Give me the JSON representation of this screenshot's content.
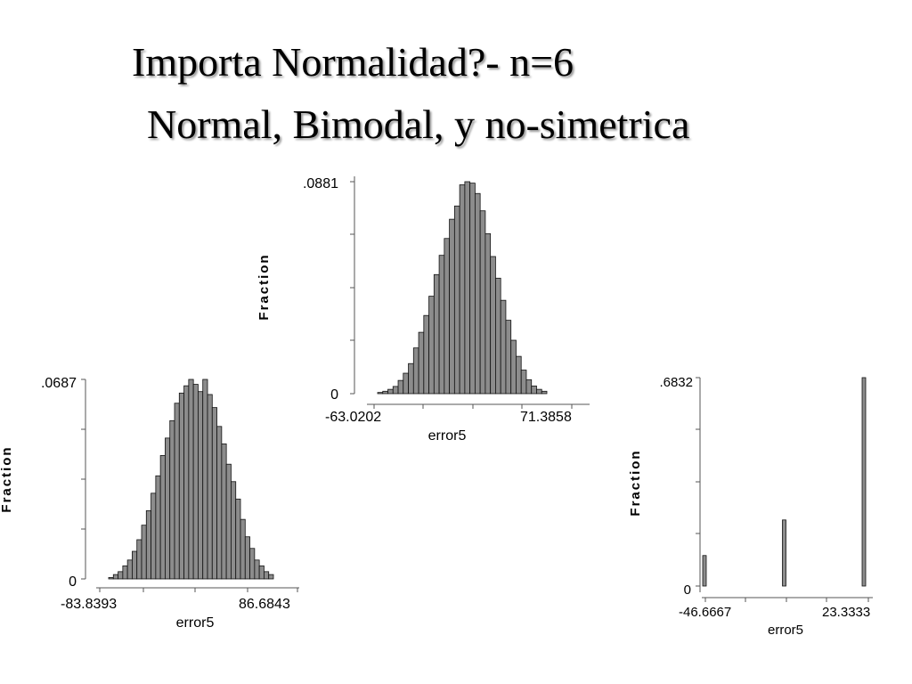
{
  "slide": {
    "title_line1": "Importa Normalidad?- n=6",
    "title_line2": "Normal, Bimodal, y no-simetrica"
  },
  "colors": {
    "bar_fill": "#8c8c8c",
    "bar_stroke": "#111111",
    "axis": "#555555"
  },
  "chart_data": [
    {
      "type": "bar",
      "xlabel": "error5",
      "ylabel": "Fraction",
      "x_tick_labels": [
        "-63.0202",
        "71.3858"
      ],
      "y_tick_labels": [
        ".0881",
        "0"
      ],
      "xlim": [
        -63.0202,
        71.3858
      ],
      "ylim": [
        0,
        0.0881
      ],
      "values": [
        0.0005,
        0.001,
        0.0018,
        0.003,
        0.0055,
        0.0085,
        0.0125,
        0.019,
        0.0255,
        0.0325,
        0.0405,
        0.0495,
        0.0575,
        0.0645,
        0.0725,
        0.078,
        0.0868,
        0.0881,
        0.0875,
        0.0832,
        0.076,
        0.0665,
        0.057,
        0.048,
        0.0388,
        0.0305,
        0.0222,
        0.0155,
        0.0098,
        0.0058,
        0.0032,
        0.0018,
        0.001
      ]
    },
    {
      "type": "bar",
      "xlabel": "error5",
      "ylabel": "Fraction",
      "x_tick_labels": [
        "-83.8393",
        "86.6843"
      ],
      "y_tick_labels": [
        ".0687",
        "0"
      ],
      "xlim": [
        -83.8393,
        86.6843
      ],
      "ylim": [
        0,
        0.0687
      ],
      "values": [
        0.0005,
        0.0015,
        0.0025,
        0.0045,
        0.0065,
        0.0095,
        0.0135,
        0.0185,
        0.0235,
        0.0295,
        0.0355,
        0.0425,
        0.0485,
        0.0545,
        0.0605,
        0.064,
        0.0665,
        0.0687,
        0.067,
        0.0645,
        0.0687,
        0.0635,
        0.059,
        0.0525,
        0.0465,
        0.0395,
        0.0335,
        0.0275,
        0.0205,
        0.0145,
        0.0105,
        0.0065,
        0.0045,
        0.0025,
        0.0015
      ]
    },
    {
      "type": "bar",
      "xlabel": "error5",
      "ylabel": "Fraction",
      "x_tick_labels": [
        "-46.6667",
        "23.3333"
      ],
      "y_tick_labels": [
        ".6832",
        "0"
      ],
      "xlim": [
        -46.6667,
        23.3333
      ],
      "ylim": [
        0,
        0.6832
      ],
      "x": [
        -46.6667,
        -11.6667,
        23.3333
      ],
      "values": [
        0.1,
        0.2166,
        0.6832
      ]
    }
  ]
}
